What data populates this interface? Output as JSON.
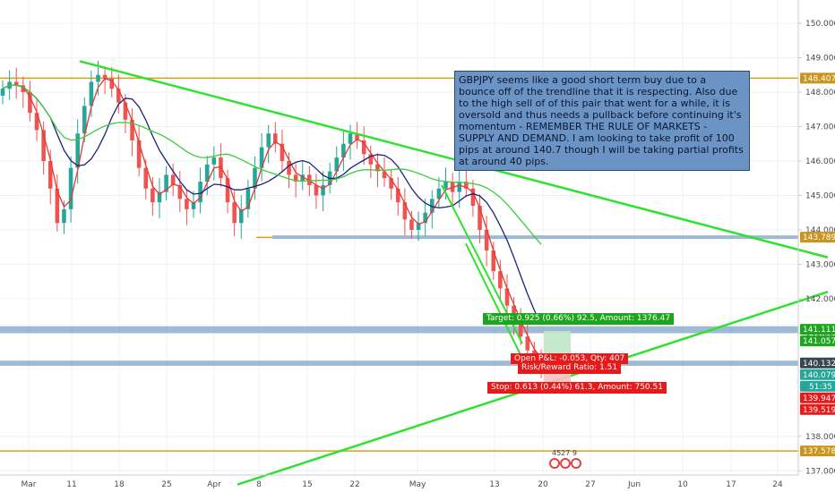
{
  "annotation": "GBPJPY seems like a good short term buy due to a bounce off of the trendline that it is respecting. Also due to the high sell of of this pair that went for a while, it is oversold and thus needs a pullback before continuing it's momentum - REMEMBER THE RULE OF MARKETS - SUPPLY AND DEMAND. I am looking to take profit of 100 pips at around 140.7 though I will be taking partial profits at around 40 pips.",
  "position": {
    "target_label": "Target: 0.925 (0.66%) 92.5, Amount: 1376.47",
    "open_pnl_label": "Open P&L: -0.053, Qty: 407",
    "risk_reward_label": "Risk/Reward Ratio: 1.51",
    "stop_label": "Stop: 0.613 (0.44%) 61.3, Amount: 750.51"
  },
  "colors": {
    "up": "#26a69a",
    "down": "#ef5350",
    "trendline": "#2fe22f",
    "ma_fast": "#e53935",
    "ma_mid": "#1a237e",
    "ma_slow": "#3ccc3c",
    "level_line": "#d4a017",
    "zone": "#7fa3c6",
    "target_green": "#1ea51e",
    "stop_red": "#e61a1a"
  },
  "price_badges": [
    {
      "price": 148.407,
      "label": "148.407",
      "color": "#c8961e"
    },
    {
      "price": 143.789,
      "label": "143.789",
      "color": "#c8961e"
    },
    {
      "price": 141.111,
      "label": "141.111",
      "color": "#1ea51e"
    },
    {
      "price": 141.057,
      "label": "141.057",
      "color": "#1ea51e"
    },
    {
      "price": 140.132,
      "label": "140.132",
      "color": "#37474f"
    },
    {
      "price": 140.079,
      "label": "140.079",
      "color": "#26a69a"
    },
    {
      "price": 139.947,
      "label": "139.947",
      "color": "#e61a1a"
    },
    {
      "price": 139.519,
      "label": "139.519",
      "color": "#e61a1a"
    },
    {
      "price": 137.578,
      "label": "137.578",
      "color": "#c8961e"
    }
  ],
  "countdown_badge": {
    "label": "51:35",
    "color": "#26a69a"
  },
  "logo_text": "4527 9",
  "chart_data": {
    "type": "candlestick",
    "title": "",
    "y_ticks": [
      "150.000",
      "149.000",
      "148.000",
      "147.000",
      "146.000",
      "145.000",
      "144.000",
      "143.000",
      "142.000",
      "141.000",
      "138.000",
      "137.000"
    ],
    "x_ticks": [
      "Mar",
      "11",
      "18",
      "25",
      "Apr",
      "8",
      "15",
      "22",
      "May",
      "13",
      "20",
      "27",
      "Jun",
      "10",
      "17",
      "24"
    ],
    "ylim": [
      136.8,
      150.6
    ],
    "close": [
      148.1,
      148.3,
      148.2,
      148.0,
      147.4,
      146.9,
      146.0,
      145.2,
      144.2,
      144.6,
      145.8,
      146.8,
      147.6,
      148.3,
      148.5,
      148.4,
      148.1,
      147.7,
      147.2,
      146.6,
      145.8,
      145.2,
      144.8,
      145.1,
      145.6,
      145.3,
      144.9,
      144.6,
      144.8,
      145.4,
      145.9,
      146.1,
      145.5,
      144.8,
      144.2,
      144.6,
      145.2,
      145.8,
      146.4,
      146.8,
      146.5,
      146.0,
      145.6,
      145.4,
      145.6,
      145.3,
      145.0,
      145.3,
      145.7,
      146.1,
      146.5,
      146.8,
      146.6,
      146.2,
      145.9,
      145.7,
      145.5,
      145.2,
      144.8,
      144.3,
      144.0,
      144.2,
      144.5,
      144.9,
      145.2,
      145.4,
      145.1,
      145.4,
      145.2,
      144.7,
      144.0,
      143.4,
      142.8,
      142.3,
      141.8,
      141.4,
      140.9,
      140.5,
      140.2,
      140.15
    ],
    "trendlines": [
      {
        "name": "",
        "points": [
          [
            "2019-03-06",
            148.9
          ],
          [
            "2019-06-28",
            143.2
          ]
        ]
      },
      {
        "name": "",
        "points": [
          [
            "2019-04-04",
            136.6
          ],
          [
            "2019-06-28",
            142.2
          ]
        ]
      }
    ],
    "levels": [
      148.407,
      137.578
    ],
    "zones": [
      [
        143.74,
        143.84
      ],
      [
        141.0,
        141.2
      ],
      [
        140.05,
        140.2
      ]
    ],
    "grid": true,
    "legend": "none"
  }
}
